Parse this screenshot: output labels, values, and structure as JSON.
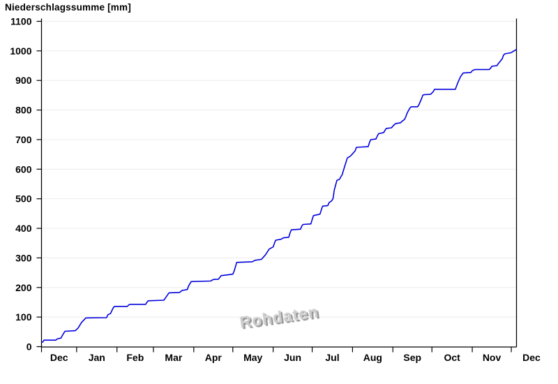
{
  "page": {
    "background": "#ffffff"
  },
  "chart": {
    "title": "Niederschlagssumme [mm]",
    "watermark": "Rohdaten"
  },
  "chart_data": {
    "type": "line",
    "title": "Niederschlagssumme [mm]",
    "subtitle": "",
    "legend": "none",
    "watermark": "Rohdaten",
    "grid": {
      "horizontal": true,
      "vertical": false,
      "color": "#ececec",
      "step_mm": 100
    },
    "y_axis": {
      "label": "Niederschlagssumme [mm]",
      "unit": "mm",
      "min": 0,
      "max": 1100,
      "tick_step": 100,
      "tick_labels": [
        "0",
        "100",
        "200",
        "300",
        "400",
        "500",
        "600",
        "700",
        "800",
        "900",
        "1000",
        "1100"
      ]
    },
    "x_axis": {
      "description": "one year, day offsets from plot start (early December) to early December next year",
      "days_total": 365,
      "month_tick_days": [
        0,
        27,
        58,
        86,
        117,
        147,
        178,
        208,
        239,
        270,
        300,
        331,
        361
      ],
      "virtual_end_day": 392,
      "month_labels": [
        "Dec",
        "Jan",
        "Feb",
        "Mar",
        "Apr",
        "May",
        "Jun",
        "Jul",
        "Aug",
        "Sep",
        "Oct",
        "Nov",
        "Dec"
      ]
    },
    "series": [
      {
        "name": "Niederschlagssumme",
        "color": "#0000dd",
        "points": [
          [
            0,
            14
          ],
          [
            1,
            16
          ],
          [
            2,
            22
          ],
          [
            11,
            22
          ],
          [
            12,
            26
          ],
          [
            15,
            29
          ],
          [
            16,
            38
          ],
          [
            18,
            52
          ],
          [
            26,
            54
          ],
          [
            28,
            62
          ],
          [
            31,
            83
          ],
          [
            33,
            92
          ],
          [
            34,
            97
          ],
          [
            50,
            98
          ],
          [
            51,
            108
          ],
          [
            53,
            112
          ],
          [
            55,
            130
          ],
          [
            56,
            136
          ],
          [
            66,
            136
          ],
          [
            67,
            141
          ],
          [
            68,
            143
          ],
          [
            80,
            143
          ],
          [
            81,
            150
          ],
          [
            82,
            155
          ],
          [
            94,
            157
          ],
          [
            95,
            163
          ],
          [
            98,
            182
          ],
          [
            106,
            183
          ],
          [
            108,
            190
          ],
          [
            112,
            193
          ],
          [
            113,
            205
          ],
          [
            115,
            220
          ],
          [
            130,
            222
          ],
          [
            132,
            227
          ],
          [
            136,
            228
          ],
          [
            138,
            240
          ],
          [
            147,
            245
          ],
          [
            148,
            255
          ],
          [
            150,
            285
          ],
          [
            162,
            287
          ],
          [
            164,
            292
          ],
          [
            169,
            295
          ],
          [
            172,
            310
          ],
          [
            175,
            330
          ],
          [
            178,
            337
          ],
          [
            179,
            350
          ],
          [
            180,
            360
          ],
          [
            184,
            363
          ],
          [
            186,
            368
          ],
          [
            190,
            370
          ],
          [
            191,
            385
          ],
          [
            192,
            395
          ],
          [
            199,
            397
          ],
          [
            200,
            408
          ],
          [
            201,
            413
          ],
          [
            207,
            415
          ],
          [
            208,
            430
          ],
          [
            209,
            443
          ],
          [
            214,
            448
          ],
          [
            215,
            462
          ],
          [
            216,
            475
          ],
          [
            220,
            477
          ],
          [
            221,
            487
          ],
          [
            223,
            493
          ],
          [
            224,
            500
          ],
          [
            225,
            530
          ],
          [
            227,
            562
          ],
          [
            229,
            566
          ],
          [
            230,
            574
          ],
          [
            231,
            581
          ],
          [
            233,
            610
          ],
          [
            235,
            638
          ],
          [
            237,
            643
          ],
          [
            238,
            647
          ],
          [
            239,
            652
          ],
          [
            241,
            662
          ],
          [
            242,
            674
          ],
          [
            251,
            676
          ],
          [
            252,
            690
          ],
          [
            253,
            700
          ],
          [
            257,
            702
          ],
          [
            258,
            712
          ],
          [
            259,
            720
          ],
          [
            263,
            724
          ],
          [
            264,
            732
          ],
          [
            265,
            738
          ],
          [
            269,
            740
          ],
          [
            270,
            746
          ],
          [
            272,
            754
          ],
          [
            276,
            757
          ],
          [
            277,
            762
          ],
          [
            279,
            768
          ],
          [
            280,
            778
          ],
          [
            281,
            790
          ],
          [
            283,
            806
          ],
          [
            284,
            811
          ],
          [
            289,
            811
          ],
          [
            290,
            818
          ],
          [
            292,
            838
          ],
          [
            293,
            850
          ],
          [
            294,
            852
          ],
          [
            299,
            853
          ],
          [
            301,
            862
          ],
          [
            302,
            870
          ],
          [
            318,
            870
          ],
          [
            320,
            893
          ],
          [
            322,
            913
          ],
          [
            324,
            925
          ],
          [
            330,
            927
          ],
          [
            331,
            933
          ],
          [
            333,
            937
          ],
          [
            344,
            937
          ],
          [
            345,
            941
          ],
          [
            346,
            948
          ],
          [
            350,
            950
          ],
          [
            351,
            957
          ],
          [
            352,
            962
          ],
          [
            354,
            973
          ],
          [
            355,
            985
          ],
          [
            356,
            990
          ],
          [
            361,
            994
          ],
          [
            362,
            997
          ],
          [
            364,
            1002
          ],
          [
            365,
            1005
          ]
        ]
      }
    ]
  }
}
